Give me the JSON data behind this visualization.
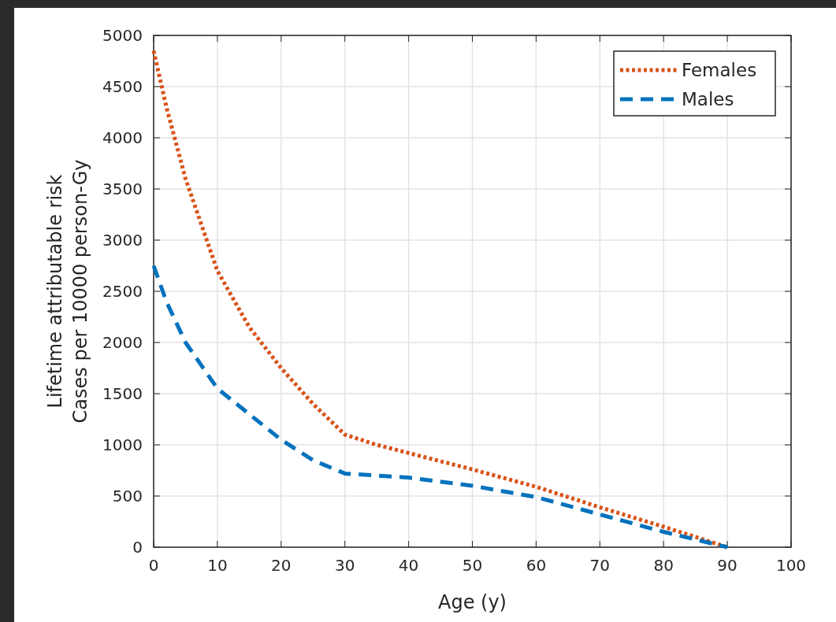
{
  "chart_data": {
    "type": "line",
    "xlabel": "Age (y)",
    "ylabel": "Lifetime attributable risk\nCases per 10000 person-Gy",
    "x": [
      0,
      2,
      5,
      10,
      15,
      20,
      25,
      30,
      35,
      40,
      50,
      60,
      70,
      80,
      90
    ],
    "series": [
      {
        "name": "Females",
        "color": "#d95319",
        "line_style": "dotted",
        "values": [
          4850,
          4300,
          3600,
          2700,
          2150,
          1750,
          1400,
          1100,
          1000,
          920,
          760,
          590,
          390,
          200,
          0
        ]
      },
      {
        "name": "Males",
        "color": "#0072bd",
        "line_style": "dashed",
        "values": [
          2750,
          2400,
          2000,
          1550,
          1300,
          1050,
          850,
          720,
          700,
          680,
          600,
          490,
          320,
          150,
          0
        ]
      }
    ],
    "xlim": [
      0,
      100
    ],
    "xticks": [
      0,
      10,
      20,
      30,
      40,
      50,
      60,
      70,
      80,
      90,
      100
    ],
    "ylim": [
      0,
      5000
    ],
    "yticks": [
      0,
      500,
      1000,
      1500,
      2000,
      2500,
      3000,
      3500,
      4000,
      4500,
      5000
    ],
    "grid": true,
    "legend": "top right"
  }
}
